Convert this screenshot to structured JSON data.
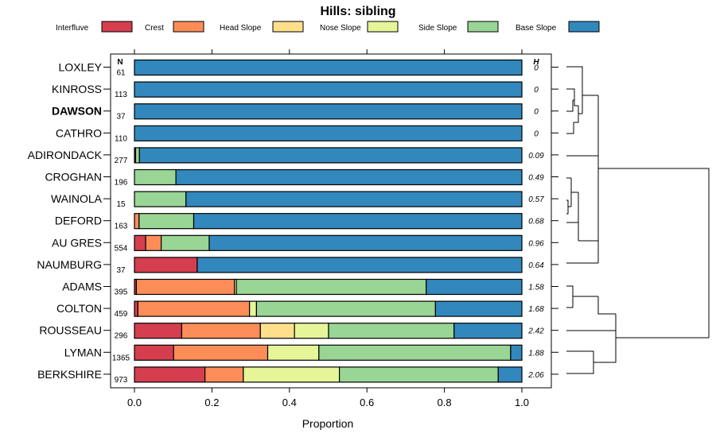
{
  "chart_data": {
    "type": "bar",
    "title": "Hills: sibling",
    "xlabel": "Proportion",
    "xlim": [
      0,
      1
    ],
    "xticks": [
      "0.0",
      "0.2",
      "0.4",
      "0.6",
      "0.8",
      "1.0"
    ],
    "n_header": "N",
    "h_header": "H",
    "legend": [
      {
        "name": "Interfluve",
        "color": "#D53E4F"
      },
      {
        "name": "Crest",
        "color": "#FC8D59"
      },
      {
        "name": "Head Slope",
        "color": "#FEE08B"
      },
      {
        "name": "Nose Slope",
        "color": "#E6F598"
      },
      {
        "name": "Side Slope",
        "color": "#99D594"
      },
      {
        "name": "Base Slope",
        "color": "#3288BD"
      }
    ],
    "rows": [
      {
        "label": "LOXLEY",
        "n": "61",
        "h": "0",
        "bold": false,
        "values": [
          0,
          0,
          0,
          0,
          0,
          1.0
        ]
      },
      {
        "label": "KINROSS",
        "n": "113",
        "h": "0",
        "bold": false,
        "values": [
          0,
          0,
          0,
          0,
          0,
          1.0
        ]
      },
      {
        "label": "DAWSON",
        "n": "37",
        "h": "0",
        "bold": true,
        "values": [
          0,
          0,
          0,
          0,
          0,
          1.0
        ]
      },
      {
        "label": "CATHRO",
        "n": "110",
        "h": "0",
        "bold": false,
        "values": [
          0,
          0,
          0,
          0,
          0,
          1.0
        ]
      },
      {
        "label": "ADIRONDACK",
        "n": "277",
        "h": "0.09",
        "bold": false,
        "values": [
          0.003,
          0,
          0,
          0,
          0.01,
          0.987
        ]
      },
      {
        "label": "CROGHAN",
        "n": "196",
        "h": "0.49",
        "bold": false,
        "values": [
          0,
          0,
          0,
          0,
          0.107,
          0.893
        ]
      },
      {
        "label": "WAINOLA",
        "n": "15",
        "h": "0.57",
        "bold": false,
        "values": [
          0,
          0,
          0,
          0,
          0.133,
          0.867
        ]
      },
      {
        "label": "DEFORD",
        "n": "163",
        "h": "0.68",
        "bold": false,
        "values": [
          0,
          0.012,
          0,
          0,
          0.141,
          0.847
        ]
      },
      {
        "label": "AU GRES",
        "n": "554",
        "h": "0.96",
        "bold": false,
        "values": [
          0.029,
          0.04,
          0,
          0,
          0.124,
          0.807
        ]
      },
      {
        "label": "NAUMBURG",
        "n": "37",
        "h": "0.64",
        "bold": false,
        "values": [
          0.162,
          0,
          0,
          0,
          0,
          0.838
        ]
      },
      {
        "label": "ADAMS",
        "n": "395",
        "h": "1.58",
        "bold": false,
        "values": [
          0.005,
          0.253,
          0.005,
          0,
          0.49,
          0.247
        ]
      },
      {
        "label": "COLTON",
        "n": "459",
        "h": "1.68",
        "bold": false,
        "values": [
          0.009,
          0.288,
          0,
          0.018,
          0.462,
          0.223
        ]
      },
      {
        "label": "ROUSSEAU",
        "n": "296",
        "h": "2.42",
        "bold": false,
        "values": [
          0.122,
          0.203,
          0.088,
          0.088,
          0.324,
          0.175
        ]
      },
      {
        "label": "LYMAN",
        "n": "1365",
        "h": "1.88",
        "bold": false,
        "values": [
          0.101,
          0.243,
          0,
          0.132,
          0.495,
          0.029
        ]
      },
      {
        "label": "BERKSHIRE",
        "n": "973",
        "h": "2.06",
        "bold": false,
        "values": [
          0.182,
          0.099,
          0,
          0.248,
          0.41,
          0.061
        ]
      }
    ]
  }
}
